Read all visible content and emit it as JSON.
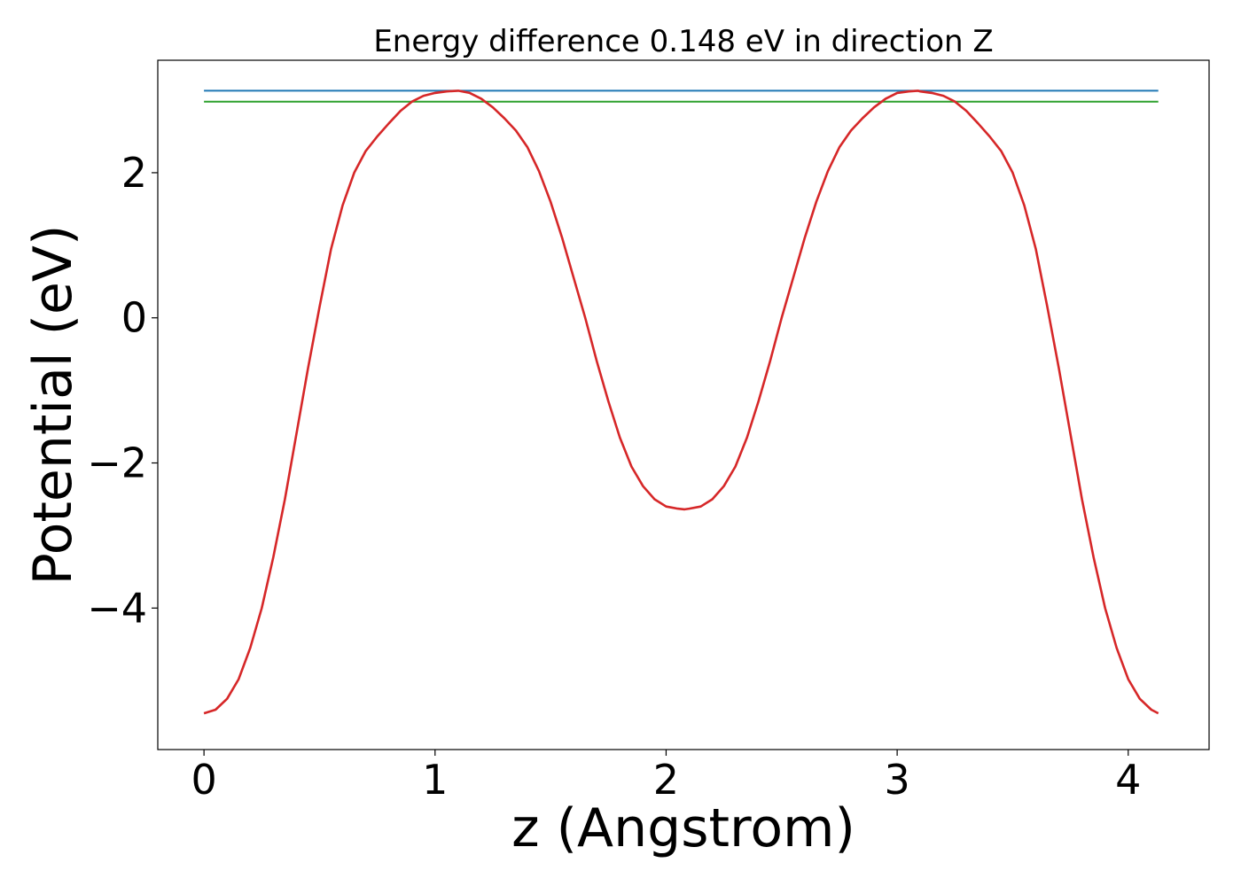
{
  "chart_data": {
    "type": "line",
    "title": "Energy difference 0.148 eV in direction Z",
    "xlabel": "z (Angstrom)",
    "ylabel": "Potential (eV)",
    "xlim": [
      -0.2,
      4.35
    ],
    "ylim": [
      -5.95,
      3.55
    ],
    "x_ticks": [
      0,
      1,
      2,
      3,
      4
    ],
    "x_tick_labels": [
      "0",
      "1",
      "2",
      "3",
      "4"
    ],
    "y_ticks": [
      -4,
      -2,
      0,
      2
    ],
    "y_tick_labels": [
      "−4",
      "−2",
      "0",
      "2"
    ],
    "grid": false,
    "legend": "none",
    "series": [
      {
        "color": "#d62728",
        "x": [
          0.0,
          0.05,
          0.1,
          0.15,
          0.2,
          0.25,
          0.3,
          0.35,
          0.4,
          0.45,
          0.5,
          0.55,
          0.6,
          0.65,
          0.7,
          0.75,
          0.8,
          0.85,
          0.9,
          0.95,
          1.0,
          1.05,
          1.1,
          1.15,
          1.2,
          1.25,
          1.3,
          1.35,
          1.4,
          1.45,
          1.5,
          1.55,
          1.6,
          1.65,
          1.7,
          1.75,
          1.8,
          1.85,
          1.9,
          1.95,
          2.0,
          2.05,
          2.08,
          2.1,
          2.15,
          2.2,
          2.25,
          2.3,
          2.35,
          2.4,
          2.45,
          2.5,
          2.55,
          2.6,
          2.65,
          2.7,
          2.75,
          2.8,
          2.85,
          2.9,
          2.95,
          3.0,
          3.05,
          3.09,
          3.1,
          3.15,
          3.2,
          3.25,
          3.3,
          3.35,
          3.4,
          3.45,
          3.5,
          3.55,
          3.6,
          3.65,
          3.7,
          3.75,
          3.8,
          3.85,
          3.9,
          3.95,
          4.0,
          4.05,
          4.1,
          4.13
        ],
        "y": [
          -5.45,
          -5.4,
          -5.25,
          -4.98,
          -4.55,
          -4.0,
          -3.3,
          -2.5,
          -1.6,
          -0.7,
          0.15,
          0.95,
          1.55,
          2.0,
          2.3,
          2.5,
          2.68,
          2.85,
          2.98,
          3.06,
          3.1,
          3.12,
          3.13,
          3.1,
          3.02,
          2.9,
          2.75,
          2.58,
          2.35,
          2.02,
          1.6,
          1.1,
          0.55,
          0.0,
          -0.6,
          -1.15,
          -1.65,
          -2.05,
          -2.32,
          -2.5,
          -2.6,
          -2.63,
          -2.64,
          -2.63,
          -2.6,
          -2.5,
          -2.32,
          -2.05,
          -1.65,
          -1.15,
          -0.6,
          0.0,
          0.55,
          1.1,
          1.6,
          2.02,
          2.35,
          2.58,
          2.75,
          2.9,
          3.02,
          3.1,
          3.12,
          3.13,
          3.12,
          3.1,
          3.06,
          2.98,
          2.85,
          2.68,
          2.5,
          2.3,
          2.0,
          1.55,
          0.95,
          0.15,
          -0.7,
          -1.6,
          -2.5,
          -3.3,
          -4.0,
          -4.55,
          -4.98,
          -5.25,
          -5.4,
          -5.45
        ]
      },
      {
        "color": "#1f77b4",
        "x": [
          0.0,
          4.13
        ],
        "y": [
          3.13,
          3.13
        ]
      },
      {
        "color": "#2ca02c",
        "x": [
          0.0,
          4.13
        ],
        "y": [
          2.98,
          2.98
        ]
      }
    ]
  }
}
